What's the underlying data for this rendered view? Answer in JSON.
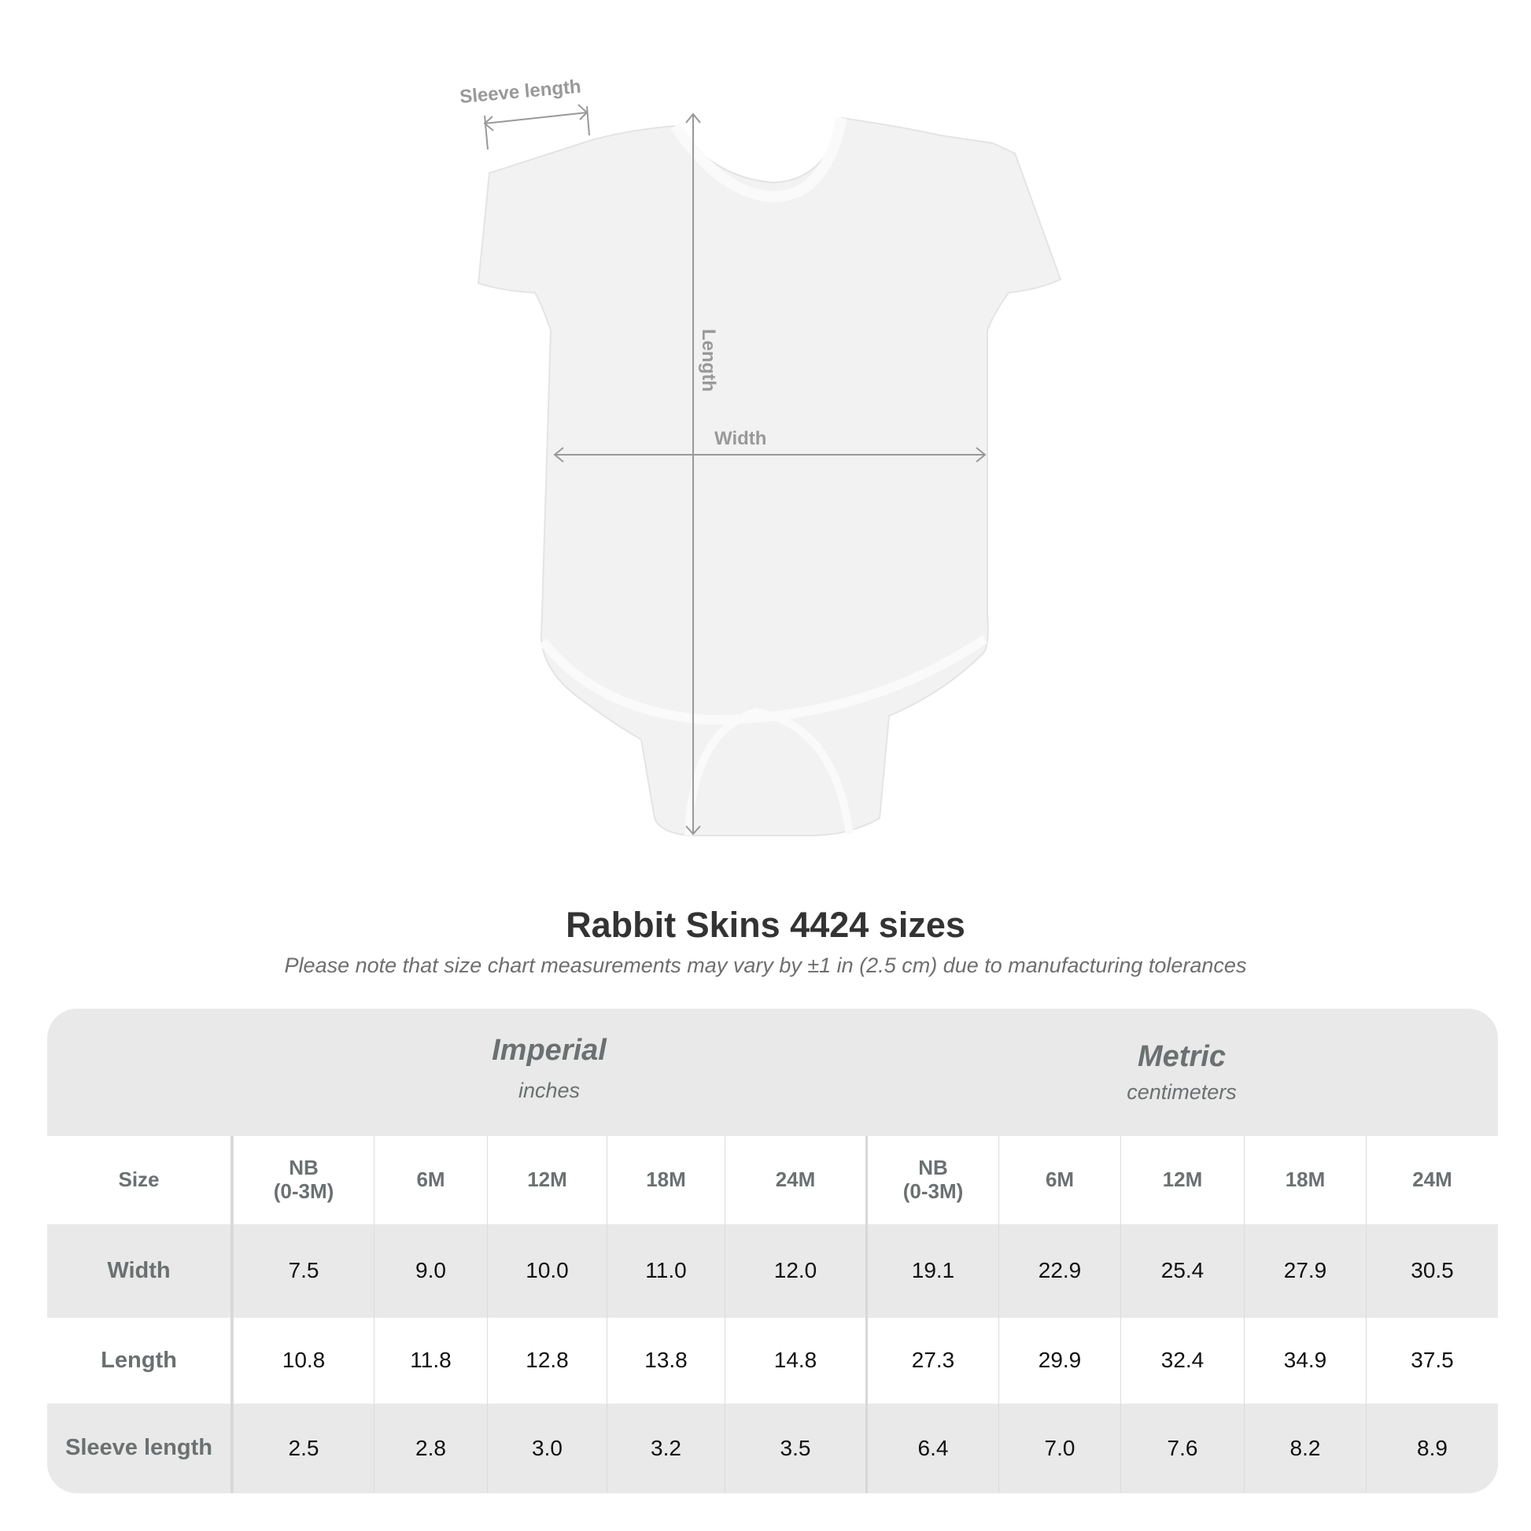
{
  "diagram": {
    "labels": {
      "sleeve": "Sleeve length",
      "length": "Length",
      "width": "Width"
    },
    "garment_color": "#f2f2f2",
    "measure_color": "#999999"
  },
  "title": "Rabbit Skins 4424 sizes",
  "subtitle": "Please note that size chart measurements may vary by ±1 in (2.5 cm) due to manufacturing tolerances",
  "table": {
    "imperial": {
      "title": "Imperial",
      "unit": "inches"
    },
    "metric": {
      "title": "Metric",
      "unit": "centimeters"
    },
    "size_label": "Size",
    "sizes": [
      "NB\n(0-3M)",
      "6M",
      "12M",
      "18M",
      "24M"
    ],
    "rows": [
      {
        "label": "Width",
        "imperial": [
          "7.5",
          "9.0",
          "10.0",
          "11.0",
          "12.0"
        ],
        "metric": [
          "19.1",
          "22.9",
          "25.4",
          "27.9",
          "30.5"
        ]
      },
      {
        "label": "Length",
        "imperial": [
          "10.8",
          "11.8",
          "12.8",
          "13.8",
          "14.8"
        ],
        "metric": [
          "27.3",
          "29.9",
          "32.4",
          "34.9",
          "37.5"
        ]
      },
      {
        "label": "Sleeve length",
        "imperial": [
          "2.5",
          "2.8",
          "3.0",
          "3.2",
          "3.5"
        ],
        "metric": [
          "6.4",
          "7.0",
          "7.6",
          "8.2",
          "8.9"
        ]
      }
    ]
  }
}
